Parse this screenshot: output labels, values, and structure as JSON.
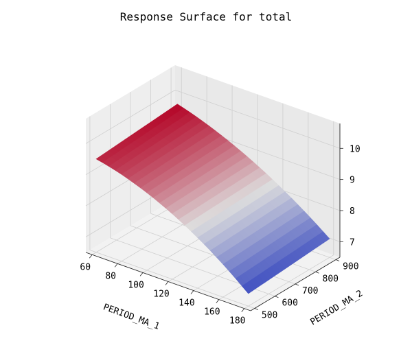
{
  "chart_data": {
    "type": "surface",
    "title": "Response Surface for total",
    "xlabel": "PERIOD_MA_1",
    "ylabel": "PERIOD_MA_2",
    "zlabel": "",
    "x_ticks": [
      "60",
      "80",
      "100",
      "120",
      "140",
      "160",
      "180"
    ],
    "y_ticks": [
      "500",
      "600",
      "700",
      "800",
      "900"
    ],
    "z_ticks": [
      "7",
      "8",
      "9",
      "10"
    ],
    "xlim": [
      55,
      185
    ],
    "ylim": [
      480,
      920
    ],
    "zlim": [
      6.5,
      10.8
    ],
    "colormap": "coolwarm",
    "colors": {
      "low": "#3b4cc0",
      "mid": "#dddddd",
      "high": "#b40426"
    },
    "corners": [
      {
        "x": 60,
        "y": 500,
        "z": 9.5
      },
      {
        "x": 180,
        "y": 500,
        "z": 6.9
      },
      {
        "x": 60,
        "y": 900,
        "z": 9.7
      },
      {
        "x": 180,
        "y": 900,
        "z": 7.1
      }
    ],
    "mid_edges": [
      {
        "x": 120,
        "y": 500,
        "z": 8.6
      },
      {
        "x": 120,
        "y": 900,
        "z": 8.7
      }
    ],
    "grid": true
  }
}
